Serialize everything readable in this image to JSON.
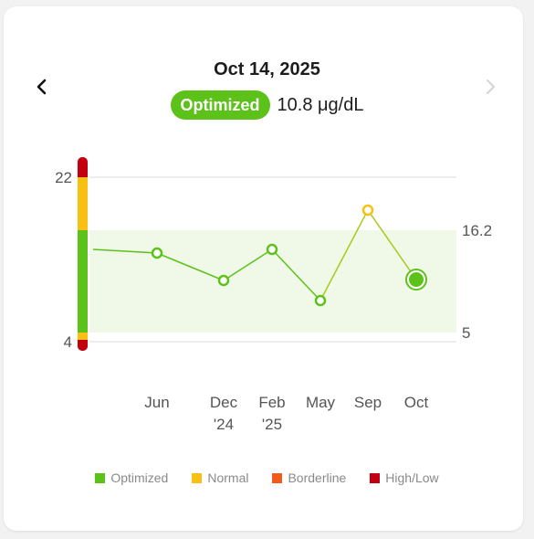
{
  "header": {
    "date": "Oct 14, 2025",
    "status_label": "Optimized",
    "value": "10.8 μg/dL"
  },
  "navigation": {
    "prev_icon": "chevron-left-icon",
    "next_icon": "chevron-right-icon",
    "next_enabled": false
  },
  "colors": {
    "optimized": "#5cc21a",
    "normal": "#f8c012",
    "borderline": "#f25a1e",
    "high_low": "#c2000f",
    "optimal_band": "#f0f9e7"
  },
  "chart_data": {
    "type": "line",
    "title": "",
    "xlabel": "",
    "ylabel": "",
    "ylim": [
      4,
      22
    ],
    "yticks_left": [
      "22",
      "4"
    ],
    "yticks_right": [
      "16.2",
      "5"
    ],
    "optimal_range": [
      5,
      16.2
    ],
    "x_labels": [
      {
        "line1": "Jun",
        "line2": ""
      },
      {
        "line1": "Dec",
        "line2": "'24"
      },
      {
        "line1": "Feb",
        "line2": "'25"
      },
      {
        "line1": "May",
        "line2": ""
      },
      {
        "line1": "Sep",
        "line2": ""
      },
      {
        "line1": "Oct",
        "line2": ""
      }
    ],
    "series": [
      {
        "leading_value": 14.1,
        "points": [
          {
            "label": "Jun",
            "value": 13.7,
            "status": "optimized"
          },
          {
            "label": "Dec '24",
            "value": 10.7,
            "status": "optimized"
          },
          {
            "label": "Feb '25",
            "value": 14.1,
            "status": "optimized"
          },
          {
            "label": "May",
            "value": 8.5,
            "status": "optimized"
          },
          {
            "label": "Sep",
            "value": 18.4,
            "status": "normal"
          },
          {
            "label": "Oct",
            "value": 10.8,
            "status": "optimized",
            "selected": true
          }
        ]
      }
    ],
    "range_scale": [
      {
        "from": 3.0,
        "to": 4.2,
        "status": "high_low"
      },
      {
        "from": 4.2,
        "to": 5.0,
        "status": "normal"
      },
      {
        "from": 5.0,
        "to": 16.2,
        "status": "optimized"
      },
      {
        "from": 16.2,
        "to": 22.0,
        "status": "normal"
      },
      {
        "from": 22.0,
        "to": 24.2,
        "status": "high_low"
      }
    ]
  },
  "legend": [
    {
      "label": "Optimized",
      "color_key": "optimized"
    },
    {
      "label": "Normal",
      "color_key": "normal"
    },
    {
      "label": "Borderline",
      "color_key": "borderline"
    },
    {
      "label": "High/Low",
      "color_key": "high_low"
    }
  ]
}
